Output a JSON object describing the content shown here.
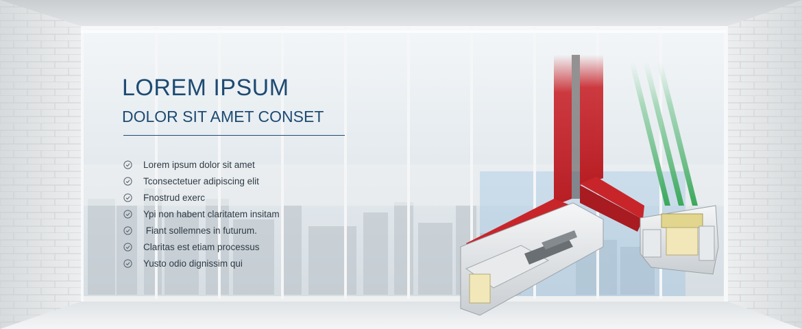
{
  "banner": {
    "title": "LOREM IPSUM",
    "subtitle": "DOLOR SIT AMET CONSET",
    "features": [
      "Lorem ipsum dolor sit amet",
      "Tconsectetuer adipiscing elit",
      "Fnostrud exerc",
      "Ypi non habent claritatem insitam",
      " Fiant sollemnes in futurum.",
      "Claritas est etiam processus",
      "Yusto odio dignissim qui"
    ],
    "feature_icon": "check-circle-icon",
    "colors": {
      "heading": "#1d4a72",
      "text": "#2e3a44",
      "frame_red": "#c8252b",
      "glass_green": "#3aa85a"
    }
  }
}
